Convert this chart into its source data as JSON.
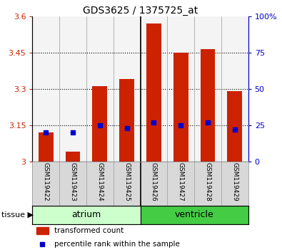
{
  "title": "GDS3625 / 1375725_at",
  "samples": [
    "GSM119422",
    "GSM119423",
    "GSM119424",
    "GSM119425",
    "GSM119426",
    "GSM119427",
    "GSM119428",
    "GSM119429"
  ],
  "transformed_count": [
    3.12,
    3.04,
    3.31,
    3.34,
    3.57,
    3.45,
    3.465,
    3.29
  ],
  "percentile_rank": [
    20,
    20,
    25,
    23,
    27,
    25,
    27,
    22
  ],
  "ylim_left": [
    3.0,
    3.6
  ],
  "ylim_right": [
    0,
    100
  ],
  "yticks_left": [
    3.0,
    3.15,
    3.3,
    3.45,
    3.6
  ],
  "yticks_right": [
    0,
    25,
    50,
    75,
    100
  ],
  "ytick_labels_left": [
    "3",
    "3.15",
    "3.3",
    "3.45",
    "3.6"
  ],
  "ytick_labels_right": [
    "0",
    "25",
    "50",
    "75",
    "100%"
  ],
  "bar_color": "#cc2200",
  "dot_color": "#0000cc",
  "left_label_color": "#cc2200",
  "right_label_color": "#0000cc",
  "atrium_color": "#ccffcc",
  "ventricle_color": "#44cc44",
  "label_bg_color": "#d8d8d8",
  "grid_yticks": [
    3.15,
    3.3,
    3.45
  ]
}
